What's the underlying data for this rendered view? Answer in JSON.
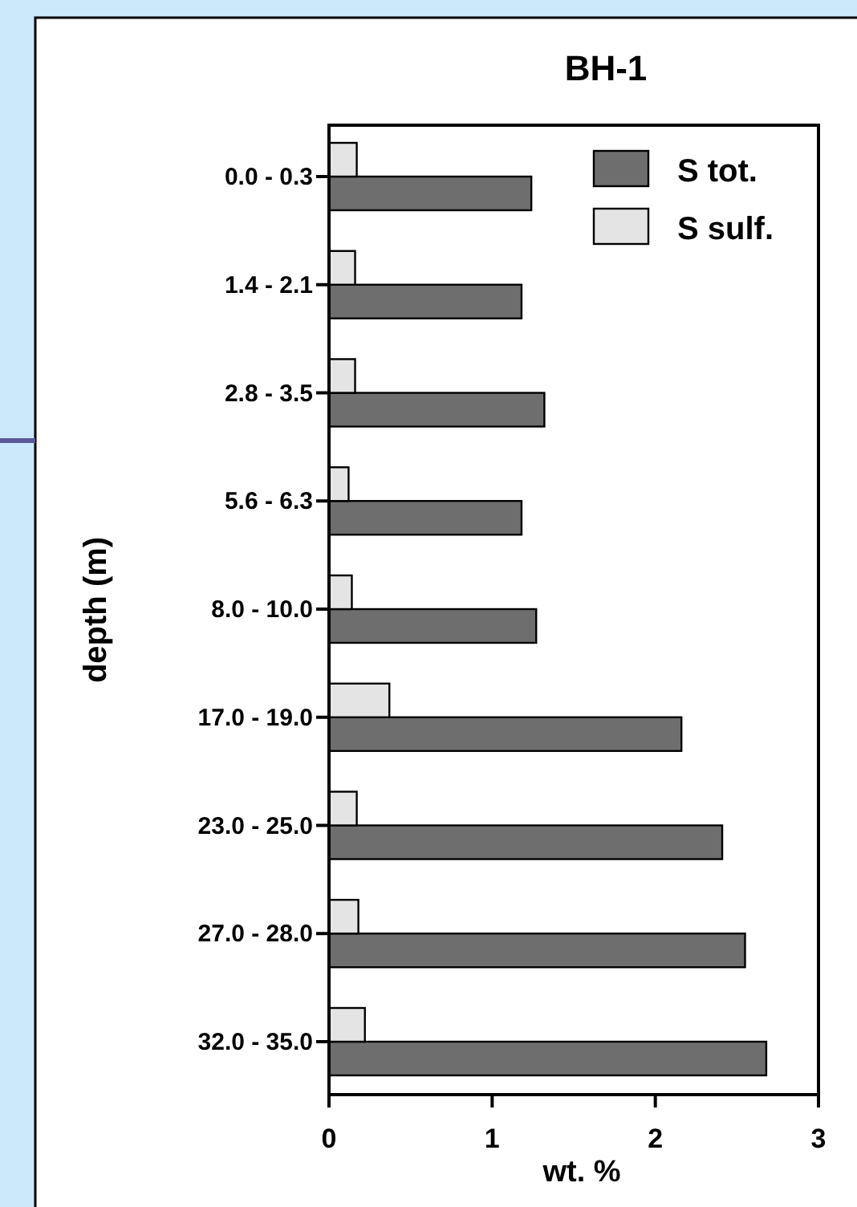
{
  "chart_data": {
    "type": "bar",
    "orientation": "horizontal",
    "title": "BH-1",
    "xlabel": "wt. %",
    "ylabel": "depth (m)",
    "categories": [
      "0.0 - 0.3",
      "1.4 - 2.1",
      "2.8 - 3.5",
      "5.6 - 6.3",
      "8.0 - 10.0",
      "17.0 - 19.0",
      "23.0 - 25.0",
      "27.0 - 28.0",
      "32.0 - 35.0"
    ],
    "series": [
      {
        "name": "S tot.",
        "color": "#6e6e6e",
        "values": [
          1.24,
          1.18,
          1.32,
          1.18,
          1.27,
          2.16,
          2.41,
          2.55,
          2.68
        ]
      },
      {
        "name": "S sulf.",
        "color": "#e4e4e4",
        "values": [
          0.17,
          0.16,
          0.16,
          0.12,
          0.14,
          0.37,
          0.17,
          0.18,
          0.22
        ]
      }
    ],
    "xlim": [
      0,
      3
    ],
    "xticks": [
      0,
      1,
      2,
      3
    ],
    "grid": false,
    "legend": "top right"
  }
}
